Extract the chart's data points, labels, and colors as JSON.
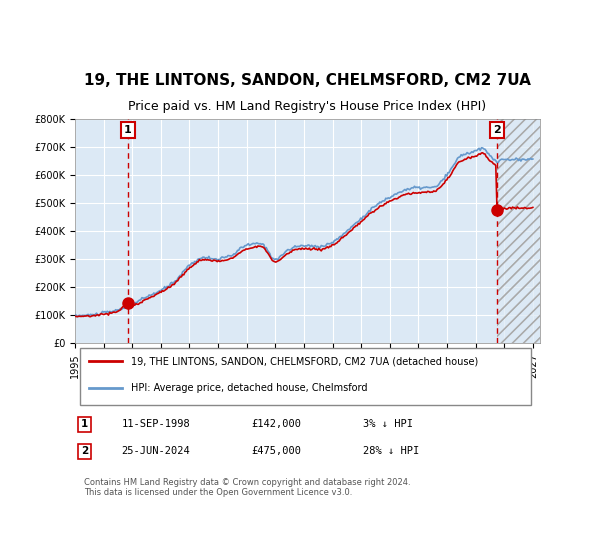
{
  "title": "19, THE LINTONS, SANDON, CHELMSFORD, CM2 7UA",
  "subtitle": "Price paid vs. HM Land Registry's House Price Index (HPI)",
  "legend_line1": "19, THE LINTONS, SANDON, CHELMSFORD, CM2 7UA (detached house)",
  "legend_line2": "HPI: Average price, detached house, Chelmsford",
  "annotation1_label": "1",
  "annotation1_date": "11-SEP-1998",
  "annotation1_price": 142000,
  "annotation1_note": "3% ↓ HPI",
  "annotation2_label": "2",
  "annotation2_date": "25-JUN-2024",
  "annotation2_price": 475000,
  "annotation2_note": "28% ↓ HPI",
  "footer": "Contains HM Land Registry data © Crown copyright and database right 2024.\nThis data is licensed under the Open Government Licence v3.0.",
  "hpi_color": "#6699cc",
  "price_color": "#cc0000",
  "bg_color": "#dce9f5",
  "plot_bg": "#dce9f5",
  "grid_color": "#ffffff",
  "annotation_box_color": "#cc0000",
  "vline_color": "#cc0000",
  "hatch_color": "#cccccc",
  "ylim": [
    0,
    800000
  ],
  "yticks": [
    0,
    100000,
    200000,
    300000,
    400000,
    500000,
    600000,
    700000,
    800000
  ],
  "xlim_start": 1995.0,
  "xlim_end": 2027.5,
  "sale1_x": 1998.7,
  "sale2_x": 2024.5,
  "hatch_start": 2024.5
}
